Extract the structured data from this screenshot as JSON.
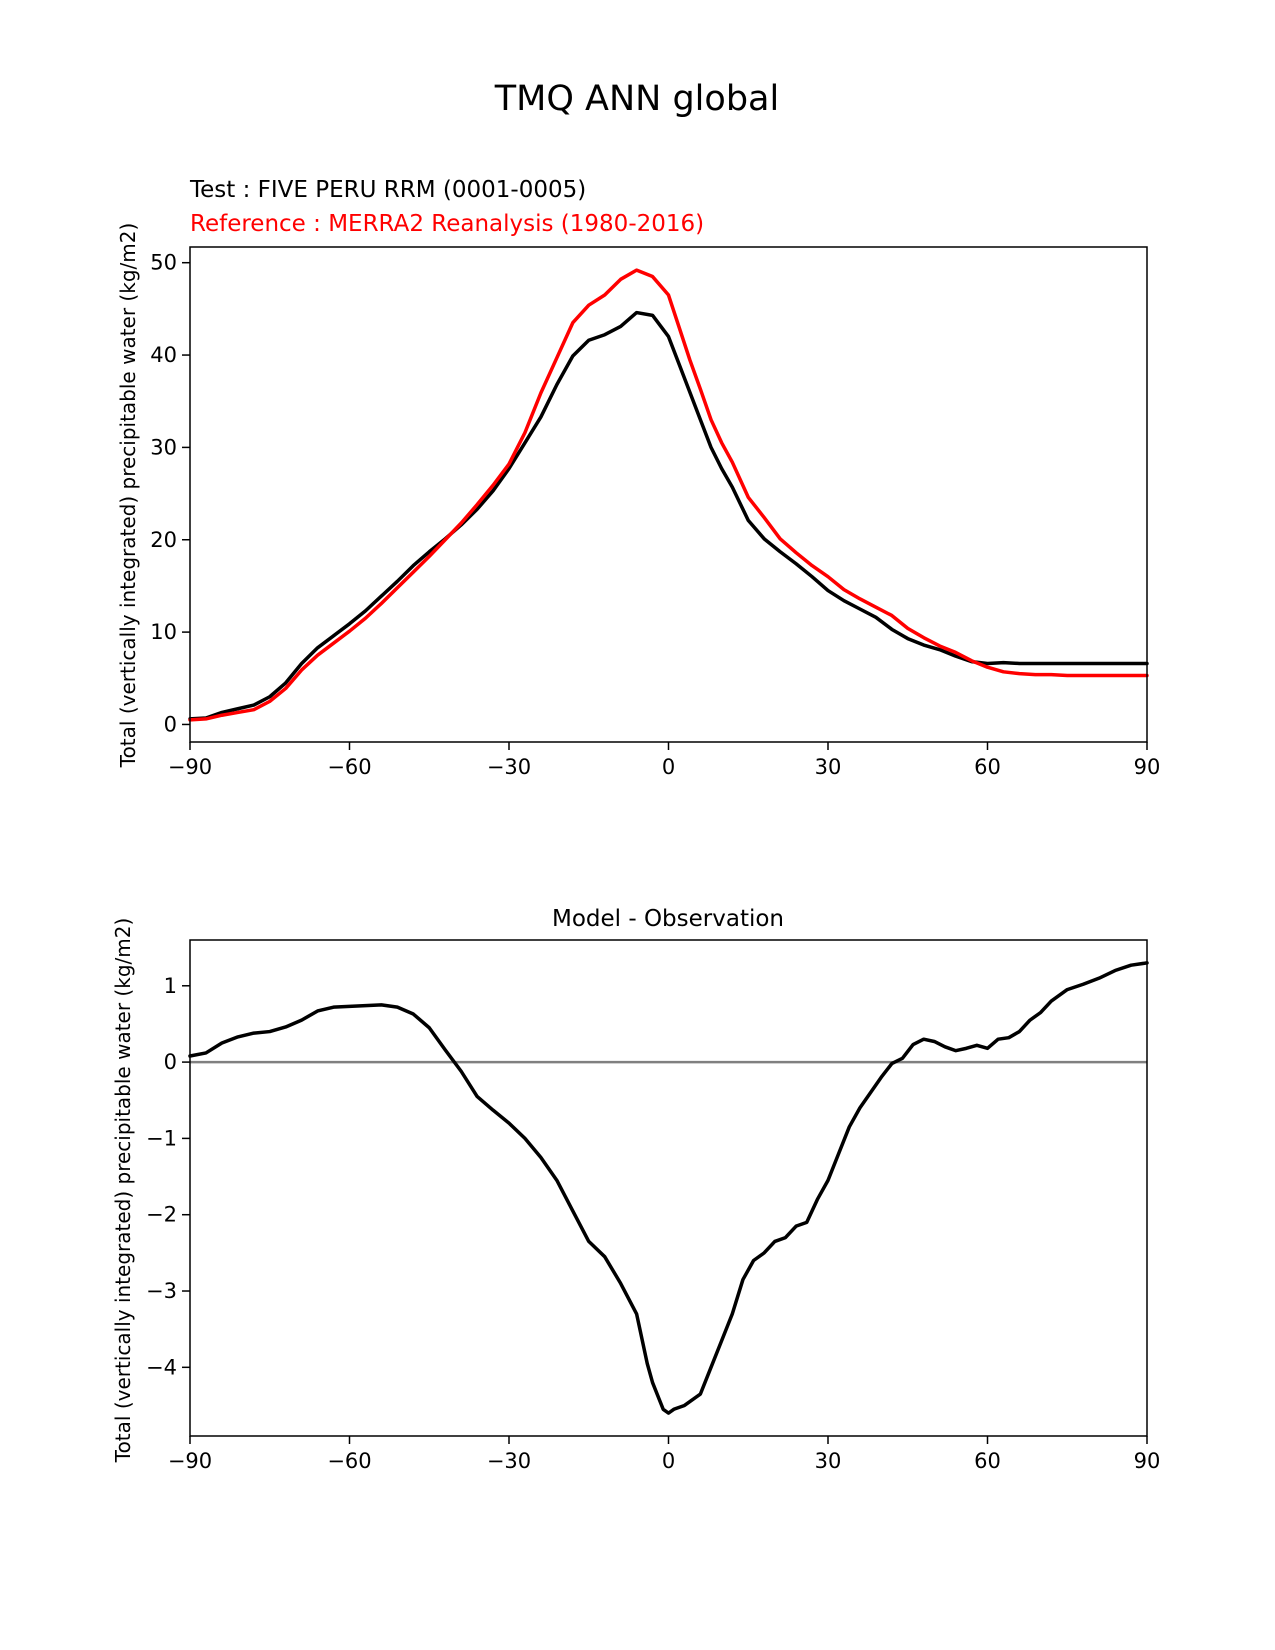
{
  "figure": {
    "title": "TMQ ANN global",
    "test_label": "Test : FIVE PERU RRM (0001-0005)",
    "reference_label": "Reference : MERRA2 Reanalysis (1980-2016)",
    "test_color": "#000000",
    "reference_color": "#ff0000",
    "zero_line_color": "#808080"
  },
  "chart_data": [
    {
      "type": "line",
      "title": "",
      "xlabel": "",
      "ylabel": "Total (vertically integrated) precipitable water (kg/m2)",
      "xlim": [
        -90,
        90
      ],
      "ylim": [
        -1.9,
        51.7
      ],
      "xticks": [
        -90,
        -60,
        -30,
        0,
        30,
        60,
        90
      ],
      "xtick_labels": [
        "−90",
        "−60",
        "−30",
        "0",
        "30",
        "60",
        "90"
      ],
      "yticks": [
        0,
        10,
        20,
        30,
        40,
        50
      ],
      "ytick_labels": [
        "0",
        "10",
        "20",
        "30",
        "40",
        "50"
      ],
      "x": [
        -90,
        -87,
        -84,
        -81,
        -78,
        -75,
        -72,
        -69,
        -66,
        -63,
        -60,
        -57,
        -54,
        -51,
        -48,
        -45,
        -42,
        -39,
        -36,
        -33,
        -30,
        -27,
        -24,
        -21,
        -18,
        -15,
        -12,
        -9,
        -6,
        -3,
        0,
        2,
        4,
        6,
        8,
        10,
        12,
        15,
        18,
        21,
        24,
        27,
        30,
        33,
        36,
        39,
        42,
        45,
        48,
        51,
        54,
        57,
        60,
        63,
        66,
        69,
        72,
        75,
        78,
        81,
        84,
        87,
        90
      ],
      "series": [
        {
          "name": "Test : FIVE PERU RRM (0001-0005)",
          "color": "#000000",
          "values": [
            0.6,
            0.7,
            1.3,
            1.7,
            2.1,
            3.0,
            4.5,
            6.6,
            8.3,
            9.6,
            10.9,
            12.3,
            13.9,
            15.5,
            17.2,
            18.7,
            20.1,
            21.6,
            23.3,
            25.3,
            27.7,
            30.5,
            33.3,
            36.8,
            39.9,
            41.6,
            42.2,
            43.1,
            44.6,
            44.3,
            42.0,
            39.0,
            36.0,
            33.0,
            30.0,
            27.7,
            25.7,
            22.1,
            20.1,
            18.7,
            17.4,
            16.0,
            14.5,
            13.4,
            12.5,
            11.6,
            10.3,
            9.3,
            8.6,
            8.1,
            7.4,
            6.8,
            6.6,
            6.7,
            6.6,
            6.6,
            6.6,
            6.6,
            6.6,
            6.6,
            6.6,
            6.6,
            6.6
          ]
        },
        {
          "name": "Reference : MERRA2 Reanalysis (1980-2016)",
          "color": "#ff0000",
          "values": [
            0.5,
            0.6,
            1.0,
            1.3,
            1.6,
            2.5,
            3.9,
            5.9,
            7.5,
            8.8,
            10.1,
            11.5,
            13.1,
            14.8,
            16.5,
            18.2,
            20.0,
            21.8,
            23.8,
            25.9,
            28.2,
            31.6,
            35.9,
            39.7,
            43.5,
            45.4,
            46.5,
            48.2,
            49.2,
            48.5,
            46.5,
            43.0,
            39.5,
            36.3,
            33.0,
            30.5,
            28.4,
            24.6,
            22.4,
            20.1,
            18.6,
            17.2,
            16.0,
            14.6,
            13.6,
            12.7,
            11.8,
            10.4,
            9.4,
            8.5,
            7.8,
            6.9,
            6.2,
            5.7,
            5.5,
            5.4,
            5.4,
            5.3,
            5.3,
            5.3,
            5.3,
            5.3,
            5.3
          ]
        }
      ]
    },
    {
      "type": "line",
      "title": "Model - Observation",
      "xlabel": "",
      "ylabel": "Total (vertically integrated) precipitable water (kg/m2)",
      "xlim": [
        -90,
        90
      ],
      "ylim": [
        -4.9,
        1.6
      ],
      "xticks": [
        -90,
        -60,
        -30,
        0,
        30,
        60,
        90
      ],
      "xtick_labels": [
        "−90",
        "−60",
        "−30",
        "0",
        "30",
        "60",
        "90"
      ],
      "yticks": [
        -4,
        -3,
        -2,
        -1,
        0,
        1
      ],
      "ytick_labels": [
        "−4",
        "−3",
        "−2",
        "−1",
        "0",
        "1"
      ],
      "reference_line": 0,
      "x": [
        -90,
        -87,
        -84,
        -81,
        -78,
        -75,
        -72,
        -69,
        -66,
        -63,
        -60,
        -57,
        -54,
        -51,
        -48,
        -45,
        -42,
        -39,
        -36,
        -33,
        -30,
        -27,
        -24,
        -21,
        -18,
        -15,
        -12,
        -9,
        -6,
        -4,
        -3,
        -1,
        0,
        1,
        3,
        6,
        8,
        10,
        12,
        14,
        16,
        18,
        20,
        22,
        24,
        26,
        28,
        30,
        32,
        34,
        36,
        38,
        40,
        42,
        44,
        46,
        48,
        50,
        52,
        54,
        56,
        58,
        60,
        62,
        64,
        66,
        68,
        70,
        72,
        75,
        78,
        81,
        84,
        87,
        90
      ],
      "series": [
        {
          "name": "Model - Observation",
          "color": "#000000",
          "values": [
            0.08,
            0.12,
            0.25,
            0.33,
            0.38,
            0.4,
            0.46,
            0.55,
            0.67,
            0.72,
            0.73,
            0.74,
            0.75,
            0.72,
            0.63,
            0.45,
            0.16,
            -0.12,
            -0.45,
            -0.63,
            -0.8,
            -1.0,
            -1.25,
            -1.55,
            -1.95,
            -2.35,
            -2.55,
            -2.9,
            -3.3,
            -3.95,
            -4.2,
            -4.55,
            -4.6,
            -4.55,
            -4.5,
            -4.35,
            -4.0,
            -3.65,
            -3.3,
            -2.85,
            -2.6,
            -2.5,
            -2.35,
            -2.3,
            -2.15,
            -2.1,
            -1.8,
            -1.55,
            -1.2,
            -0.85,
            -0.6,
            -0.4,
            -0.2,
            -0.02,
            0.05,
            0.23,
            0.3,
            0.27,
            0.2,
            0.15,
            0.18,
            0.22,
            0.18,
            0.3,
            0.32,
            0.4,
            0.55,
            0.65,
            0.8,
            0.95,
            1.02,
            1.1,
            1.2,
            1.27,
            1.3
          ]
        }
      ]
    }
  ]
}
